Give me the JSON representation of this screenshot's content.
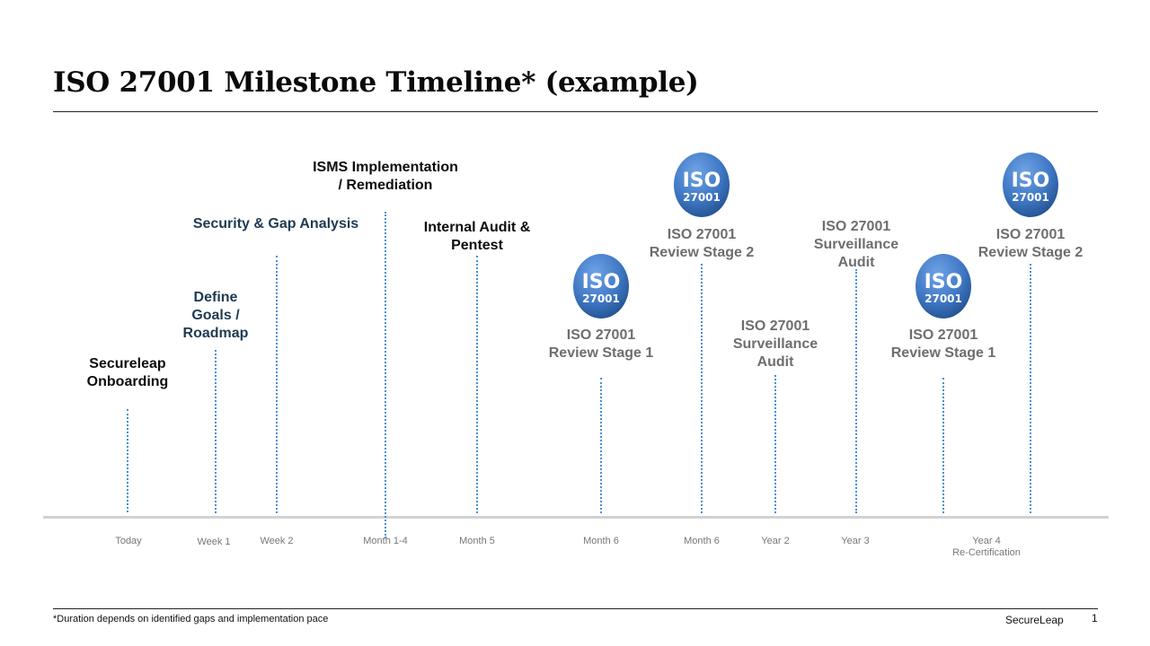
{
  "title": "ISO 27001 Milestone Timeline* (example)",
  "milestones": [
    {
      "label": "Secureleap\nOnboarding",
      "tick": "Today"
    },
    {
      "label": "Define\nGoals /\nRoadmap",
      "tick": "Week 1"
    },
    {
      "label": "Security & Gap Analysis",
      "tick": "Week 2"
    },
    {
      "label": "ISMS  Implementation\n/ Remediation",
      "tick": "Month 1-4"
    },
    {
      "label": "Internal  Audit &\nPentest",
      "tick": "Month 5"
    },
    {
      "label": "ISO 27001\nReview Stage 1",
      "tick": "Month 6"
    },
    {
      "label": "ISO 27001\nReview Stage 2",
      "tick": "Month 6"
    },
    {
      "label": "ISO 27001\nSurveillance\nAudit",
      "tick": "Year 2"
    },
    {
      "label": "ISO 27001\nSurveillance\nAudit",
      "tick": "Year 3"
    },
    {
      "label": "ISO 27001\nReview Stage 1",
      "tick": ""
    },
    {
      "label": "ISO 27001\nReview Stage 2",
      "tick": "Year 4\nRe-Certification"
    }
  ],
  "badge": {
    "line1": "ISO",
    "line2": "27001"
  },
  "footer": {
    "note": "*Duration depends on identified gaps and implementation pace",
    "brand": "SecureLeap",
    "page": "1"
  },
  "colors": {
    "badge": "#3f78c4",
    "dotted_line": "#4a90d9",
    "axis": "#d2d2d2"
  }
}
